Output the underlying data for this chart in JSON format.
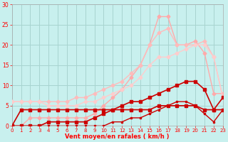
{
  "xlabel": "Vent moyen/en rafales ( km/h )",
  "background_color": "#c8f0ee",
  "grid_color": "#a8d4d0",
  "x": [
    0,
    1,
    2,
    3,
    4,
    5,
    6,
    7,
    8,
    9,
    10,
    11,
    12,
    13,
    14,
    15,
    16,
    17,
    18,
    19,
    20,
    21,
    22,
    23
  ],
  "series": [
    {
      "y": [
        0,
        0,
        2,
        2,
        2,
        2,
        2,
        2,
        2,
        3,
        5,
        7,
        9,
        12,
        15,
        20,
        27,
        27,
        20,
        20,
        21,
        18,
        8,
        8
      ],
      "color": "#ffaaaa",
      "lw": 1.0,
      "marker": "D",
      "ms": 2.5
    },
    {
      "y": [
        6,
        6,
        6,
        6,
        6,
        6,
        6,
        7,
        7,
        8,
        9,
        10,
        11,
        13,
        15,
        20,
        23,
        24,
        20,
        20,
        20,
        21,
        17,
        7
      ],
      "color": "#ffbbbb",
      "lw": 1.0,
      "marker": "D",
      "ms": 2.5
    },
    {
      "y": [
        6,
        6,
        6,
        6,
        5,
        5,
        5,
        5,
        6,
        6,
        7,
        8,
        9,
        10,
        12,
        15,
        17,
        17,
        18,
        19,
        20,
        20,
        17,
        7
      ],
      "color": "#ffcccc",
      "lw": 1.0,
      "marker": "D",
      "ms": 2.5
    },
    {
      "y": [
        0,
        0,
        0,
        0,
        1,
        1,
        1,
        1,
        1,
        2,
        3,
        4,
        5,
        6,
        6,
        7,
        8,
        9,
        10,
        11,
        11,
        9,
        4,
        7
      ],
      "color": "#cc0000",
      "lw": 1.2,
      "marker": "s",
      "ms": 2.5
    },
    {
      "y": [
        0,
        4,
        4,
        4,
        4,
        4,
        4,
        4,
        4,
        4,
        4,
        4,
        4,
        4,
        4,
        4,
        5,
        5,
        5,
        5,
        5,
        4,
        4,
        4
      ],
      "color": "#cc0000",
      "lw": 1.2,
      "marker": "s",
      "ms": 2.5
    },
    {
      "y": [
        0,
        0,
        0,
        0,
        0,
        0,
        0,
        0,
        0,
        0,
        0,
        1,
        1,
        2,
        2,
        3,
        4,
        5,
        6,
        6,
        5,
        3,
        1,
        4
      ],
      "color": "#cc0000",
      "lw": 1.0,
      "marker": "s",
      "ms": 2.0
    }
  ],
  "ylim": [
    0,
    30
  ],
  "xlim": [
    0,
    23
  ],
  "yticks": [
    0,
    5,
    10,
    15,
    20,
    25,
    30
  ],
  "xticks": [
    0,
    1,
    2,
    3,
    4,
    5,
    6,
    7,
    8,
    9,
    10,
    11,
    12,
    13,
    14,
    15,
    16,
    17,
    18,
    19,
    20,
    21,
    22,
    23
  ],
  "figsize": [
    3.2,
    2.0
  ],
  "dpi": 100
}
